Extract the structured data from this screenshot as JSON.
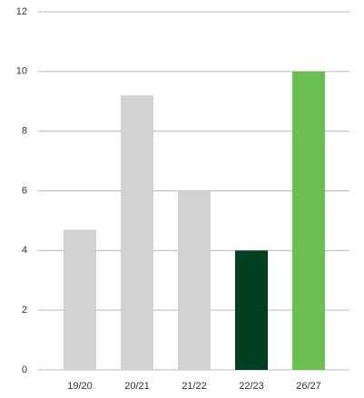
{
  "chart_data": {
    "type": "bar",
    "categories": [
      "19/20",
      "20/21",
      "21/22",
      "22/23",
      "26/27"
    ],
    "values": [
      4.7,
      9.2,
      6,
      4,
      10
    ],
    "colors": [
      "#d1d2d4",
      "#d1d2d4",
      "#d1d2d4",
      "#003f20",
      "#6cbf51"
    ],
    "ylim": [
      0,
      12
    ],
    "yticks": [
      0,
      2,
      4,
      6,
      8,
      10,
      12
    ],
    "grid": true
  }
}
